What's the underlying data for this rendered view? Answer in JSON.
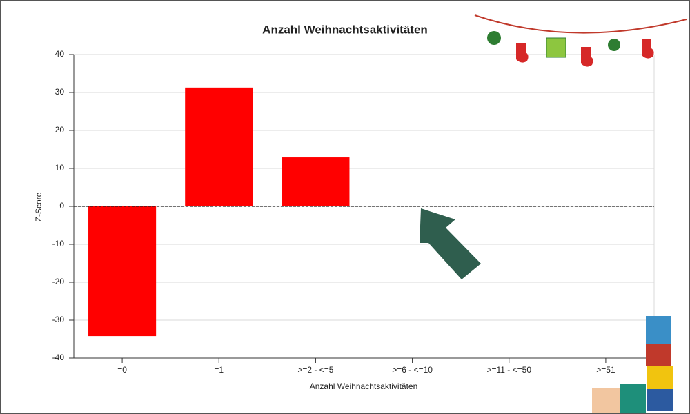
{
  "chart_data": {
    "type": "bar",
    "title": "Anzahl Weihnachtsaktivitäten",
    "x_label": "Anzahl Weihnachtsaktivitäten",
    "y_label": "Z-Score",
    "categories": [
      "=0",
      "=1",
      ">=2 - <=5",
      ">=6 - <=10",
      ">=11 - <=50",
      ">=51"
    ],
    "values": [
      -34.2,
      31.3,
      12.9,
      0,
      0,
      0
    ],
    "color": "#ff0000",
    "ylim": [
      -40,
      40
    ],
    "yticks": [
      -40,
      -30,
      -20,
      -10,
      0,
      10,
      20,
      30,
      40
    ],
    "grid": true
  }
}
